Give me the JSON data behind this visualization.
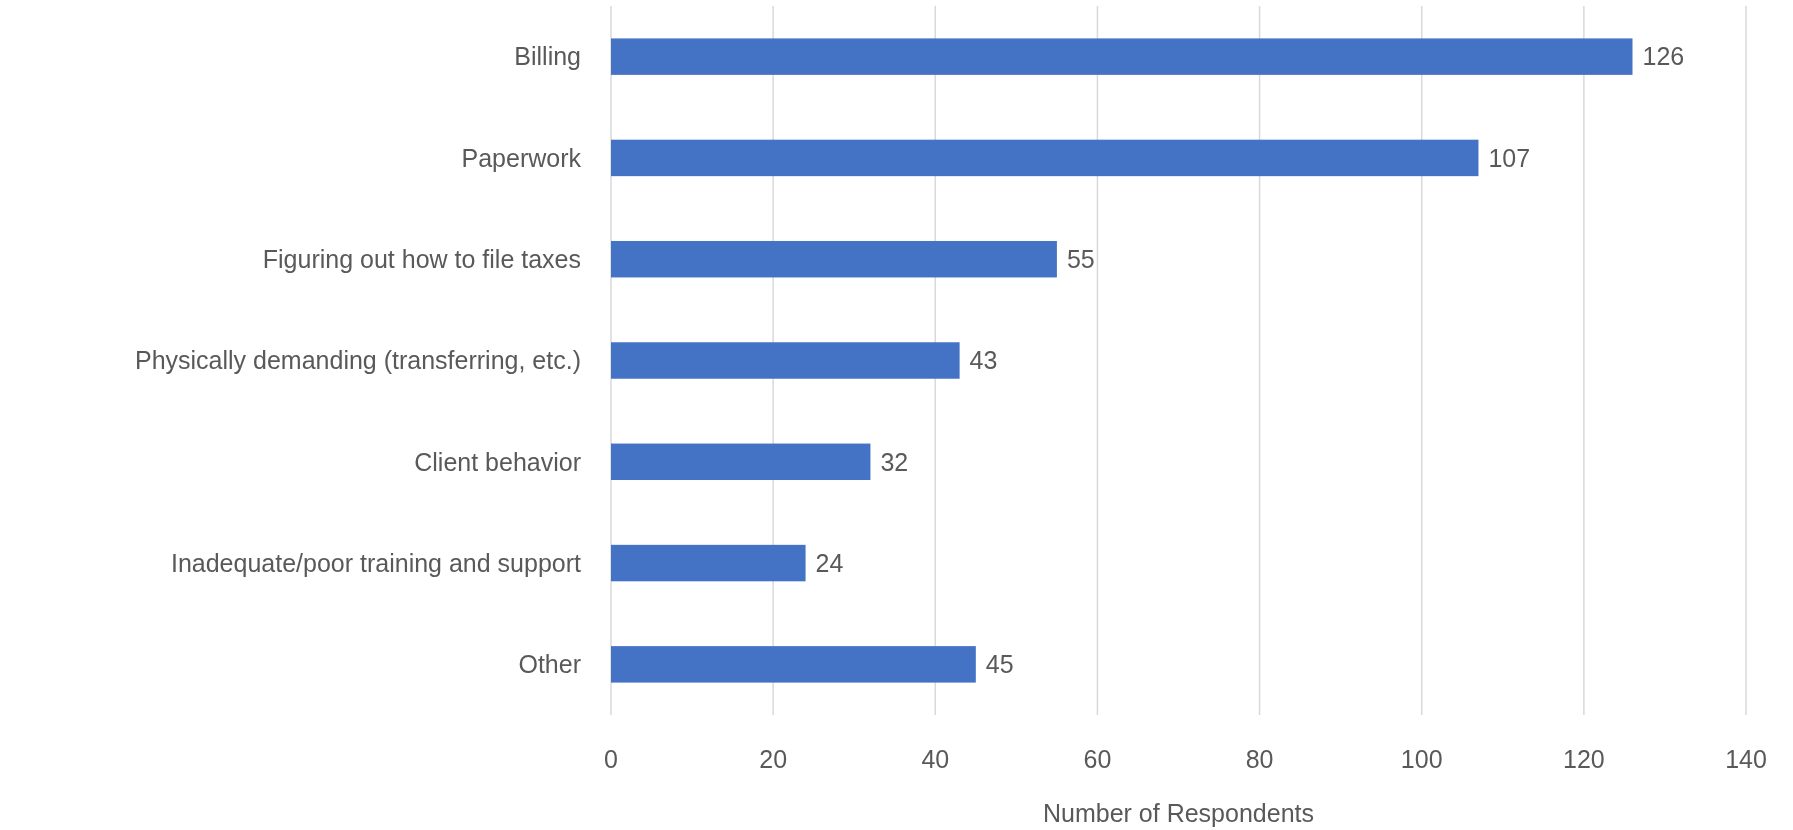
{
  "chart_data": {
    "type": "bar",
    "orientation": "horizontal",
    "xlabel": "Number of Respondents",
    "categories": [
      "Billing",
      "Paperwork",
      "Figuring out how to file taxes",
      "Physically demanding (transferring, etc.)",
      "Client behavior",
      "Inadequate/poor training and support",
      "Other"
    ],
    "values": [
      126,
      107,
      55,
      43,
      32,
      24,
      45
    ],
    "color": "#4472c4",
    "xlim": [
      0,
      140
    ],
    "xticks": [
      0,
      20,
      40,
      60,
      80,
      100,
      120,
      140
    ],
    "grid": "x",
    "data_labels": true
  }
}
